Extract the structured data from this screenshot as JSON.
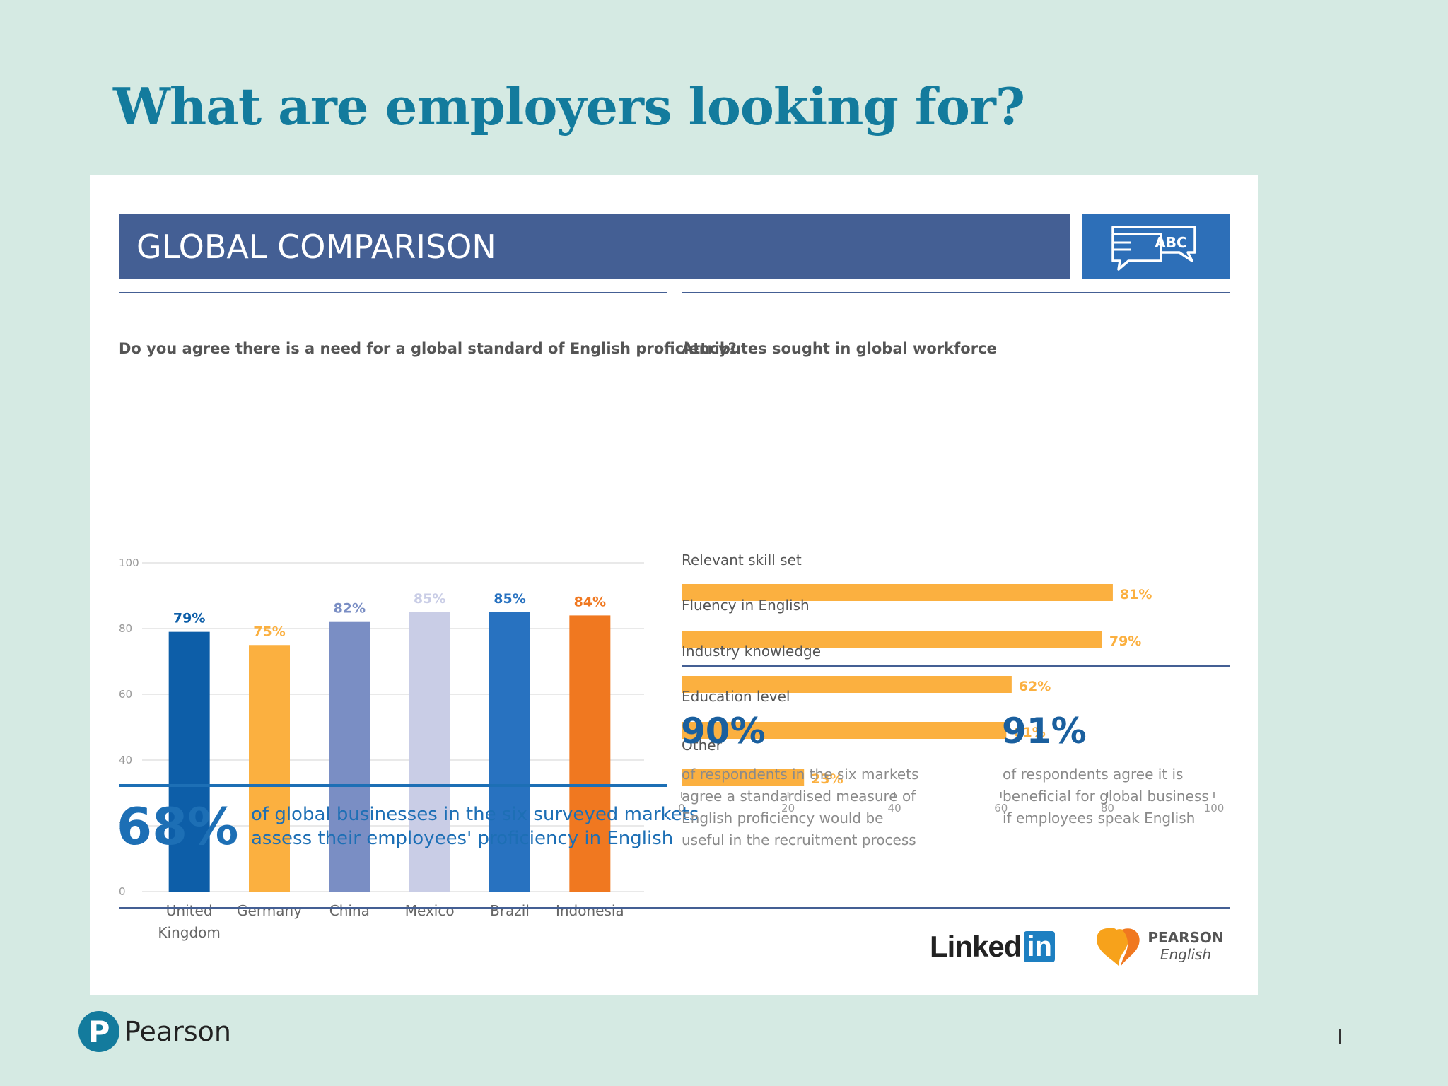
{
  "slide": {
    "title": "What are employers looking for?"
  },
  "banner": {
    "title": "GLOBAL COMPARISON",
    "badge_text": "ABC",
    "badge_icon": "speech-bubbles-icon"
  },
  "chart_data": [
    {
      "type": "bar",
      "title": "Do you agree there is a need for a global standard of English proficiency?",
      "categories": [
        "United Kingdom",
        "Germany",
        "China",
        "Mexico",
        "Brazil",
        "Indonesia"
      ],
      "category_lines": [
        [
          "United",
          "Kingdom"
        ],
        [
          "Germany"
        ],
        [
          "China"
        ],
        [
          "Mexico"
        ],
        [
          "Brazil"
        ],
        [
          "Indonesia"
        ]
      ],
      "values": [
        79,
        75,
        82,
        85,
        85,
        84
      ],
      "data_labels": [
        "79%",
        "75%",
        "82%",
        "85%",
        "85%",
        "84%"
      ],
      "colors": [
        "#0d5ea8",
        "#fbb040",
        "#7a8ec4",
        "#c9cde6",
        "#2872c0",
        "#f07820"
      ],
      "ylim": [
        0,
        100
      ],
      "yticks": [
        0,
        20,
        40,
        60,
        80,
        100
      ],
      "grid": true
    },
    {
      "type": "bar",
      "orientation": "horizontal",
      "title": "Attributes sought in global workforce",
      "categories": [
        "Relevant skill set",
        "Fluency in English",
        "Industry knowledge",
        "Education level",
        "Other"
      ],
      "values": [
        81,
        79,
        62,
        61,
        23
      ],
      "data_labels": [
        "81%",
        "79%",
        "62%",
        "61%",
        "23%"
      ],
      "color": "#fbb040",
      "xlim": [
        0,
        100
      ],
      "xticks": [
        0,
        20,
        40,
        60,
        80,
        100
      ],
      "grid": false
    }
  ],
  "stats": {
    "sixty_eight": {
      "value": "68%",
      "line1": "of global businesses in the six surveyed markets",
      "line2": "assess their employees' proficiency in English"
    },
    "ninety": {
      "value": "90%",
      "lines": [
        "of respondents in the six markets",
        "agree a standardised measure of",
        "English proficiency would be",
        "useful in the recruitment process"
      ]
    },
    "ninety_one": {
      "value": "91%",
      "lines": [
        "of respondents agree it is",
        "beneficial for global business",
        "if employees speak English"
      ]
    }
  },
  "logos": {
    "linkedin_text": "Linked",
    "linkedin_in": "in",
    "pearson_english_top": "PEARSON",
    "pearson_english_bottom": "English"
  },
  "footer": {
    "brand": "Pearson",
    "brand_letter": "P"
  },
  "colors": {
    "background": "#d5eae3",
    "title": "#137b9d",
    "banner": "#445f94",
    "badge": "#2d6fb8",
    "accent_orange": "#fbb040",
    "stat_blue": "#1a5f9e"
  }
}
